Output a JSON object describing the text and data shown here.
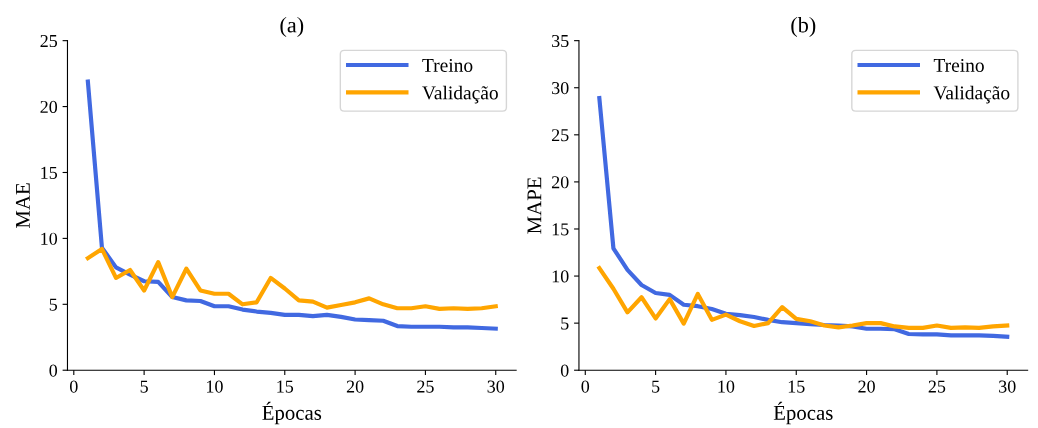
{
  "chart_data": [
    {
      "type": "line",
      "title": "(a)",
      "xlabel": "Épocas",
      "ylabel": "MAE",
      "x": [
        1,
        2,
        3,
        4,
        5,
        6,
        7,
        8,
        9,
        10,
        11,
        12,
        13,
        14,
        15,
        16,
        17,
        18,
        19,
        20,
        21,
        22,
        23,
        24,
        25,
        26,
        27,
        28,
        29,
        30
      ],
      "xlim": [
        -0.45,
        31.45
      ],
      "xticks": [
        0,
        5,
        10,
        15,
        20,
        25,
        30
      ],
      "ylim": [
        0,
        25
      ],
      "yticks": [
        0,
        5,
        10,
        15,
        20,
        25
      ],
      "legend": "top right",
      "grid": false,
      "series": [
        {
          "name": "Treino",
          "color": "#4169e1",
          "values": [
            21.9,
            9.3,
            7.8,
            7.25,
            6.75,
            6.7,
            5.55,
            5.3,
            5.25,
            4.85,
            4.85,
            4.6,
            4.45,
            4.35,
            4.2,
            4.2,
            4.1,
            4.2,
            4.05,
            3.85,
            3.8,
            3.75,
            3.35,
            3.3,
            3.3,
            3.3,
            3.25,
            3.25,
            3.2,
            3.15
          ]
        },
        {
          "name": "Validação",
          "color": "#ffa500",
          "values": [
            8.5,
            9.2,
            7.0,
            7.6,
            6.05,
            8.2,
            5.55,
            7.7,
            6.05,
            5.8,
            5.8,
            5.0,
            5.15,
            7.0,
            6.2,
            5.3,
            5.2,
            4.75,
            4.95,
            5.15,
            5.45,
            5.0,
            4.7,
            4.7,
            4.85,
            4.65,
            4.7,
            4.65,
            4.7,
            4.85
          ]
        }
      ]
    },
    {
      "type": "line",
      "title": "(b)",
      "xlabel": "Épocas",
      "ylabel": "MAPE",
      "x": [
        1,
        2,
        3,
        4,
        5,
        6,
        7,
        8,
        9,
        10,
        11,
        12,
        13,
        14,
        15,
        16,
        17,
        18,
        19,
        20,
        21,
        22,
        23,
        24,
        25,
        26,
        27,
        28,
        29,
        30
      ],
      "xlim": [
        -0.45,
        31.45
      ],
      "xticks": [
        0,
        5,
        10,
        15,
        20,
        25,
        30
      ],
      "ylim": [
        0,
        35
      ],
      "yticks": [
        0,
        5,
        10,
        15,
        20,
        25,
        30,
        35
      ],
      "legend": "top right",
      "grid": false,
      "series": [
        {
          "name": "Treino",
          "color": "#4169e1",
          "values": [
            28.9,
            12.95,
            10.65,
            9.05,
            8.2,
            8.0,
            6.95,
            6.8,
            6.5,
            6.0,
            5.85,
            5.65,
            5.35,
            5.1,
            5.0,
            4.9,
            4.8,
            4.75,
            4.65,
            4.4,
            4.4,
            4.35,
            3.85,
            3.8,
            3.8,
            3.7,
            3.7,
            3.7,
            3.65,
            3.55
          ]
        },
        {
          "name": "Validação",
          "color": "#ffa500",
          "values": [
            10.85,
            8.65,
            6.15,
            7.75,
            5.5,
            7.55,
            4.95,
            8.1,
            5.35,
            5.9,
            5.2,
            4.7,
            5.0,
            6.7,
            5.45,
            5.2,
            4.75,
            4.55,
            4.75,
            5.0,
            5.0,
            4.65,
            4.5,
            4.5,
            4.75,
            4.5,
            4.55,
            4.5,
            4.65,
            4.75
          ]
        }
      ]
    }
  ]
}
